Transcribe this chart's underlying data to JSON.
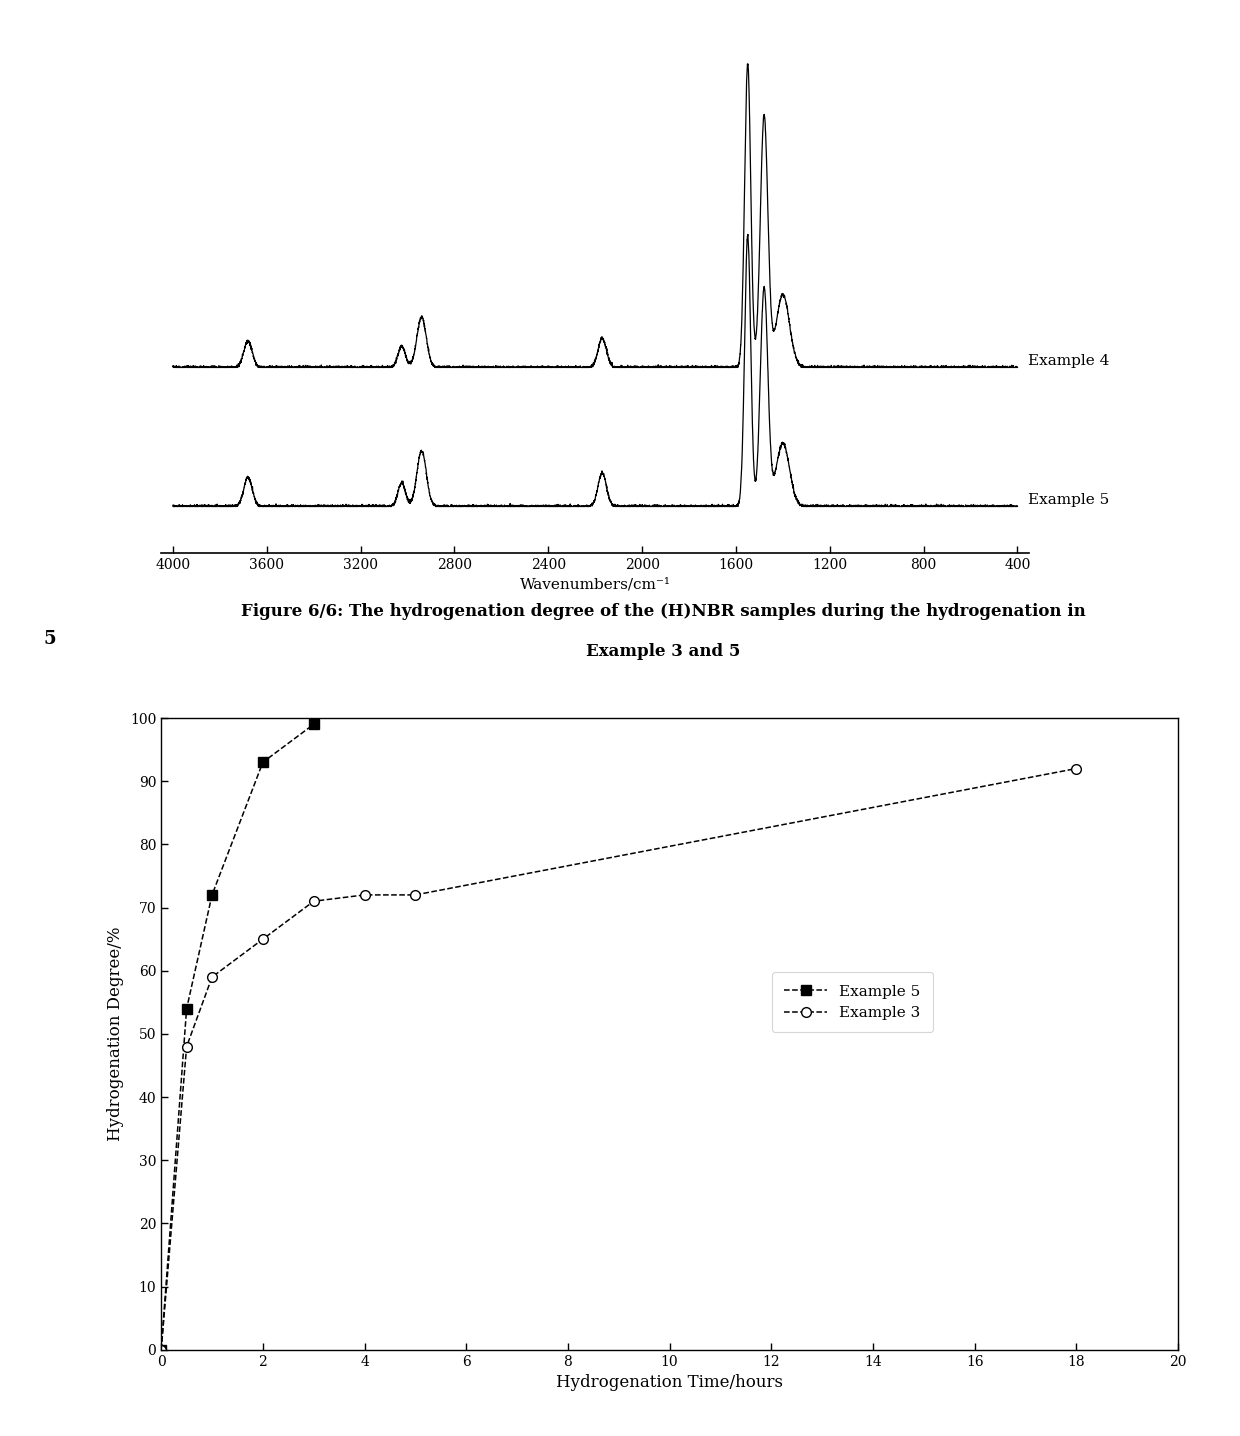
{
  "figure_caption_line1": "Figure 6/6: The hydrogenation degree of the (H)NBR samples during the hydrogenation in",
  "figure_caption_line2": "Example 3 and 5",
  "caption_number": "5",
  "ir_xlabel": "Wavenumbers/cm⁻¹",
  "ir_xticks": [
    4000,
    3600,
    3200,
    2800,
    2400,
    2000,
    1600,
    1200,
    800,
    400
  ],
  "ir_xticklabels": [
    "4000",
    "3600",
    "3200",
    "2800",
    "2400",
    "2000",
    "1600",
    "1200",
    "800",
    "400"
  ],
  "ir_label4": "Example 4",
  "ir_label5": "Example 5",
  "plot_xlabel": "Hydrogenation Time/hours",
  "plot_ylabel": "Hydrogenation Degree/%",
  "plot_xlim": [
    0,
    20
  ],
  "plot_ylim": [
    0,
    100
  ],
  "plot_xticks": [
    0,
    2,
    4,
    6,
    8,
    10,
    12,
    14,
    16,
    18,
    20
  ],
  "plot_yticks": [
    0,
    10,
    20,
    30,
    40,
    50,
    60,
    70,
    80,
    90,
    100
  ],
  "example5_x": [
    0,
    0.5,
    1,
    2,
    3
  ],
  "example5_y": [
    0,
    54,
    72,
    93,
    99
  ],
  "example3_x": [
    0,
    0.5,
    1,
    2,
    3,
    4,
    5,
    18
  ],
  "example3_y": [
    0,
    48,
    59,
    65,
    71,
    72,
    72,
    92
  ],
  "legend_labels": [
    "Example 5",
    "Example 3"
  ],
  "line_color": "#000000",
  "bg_color": "#ffffff"
}
